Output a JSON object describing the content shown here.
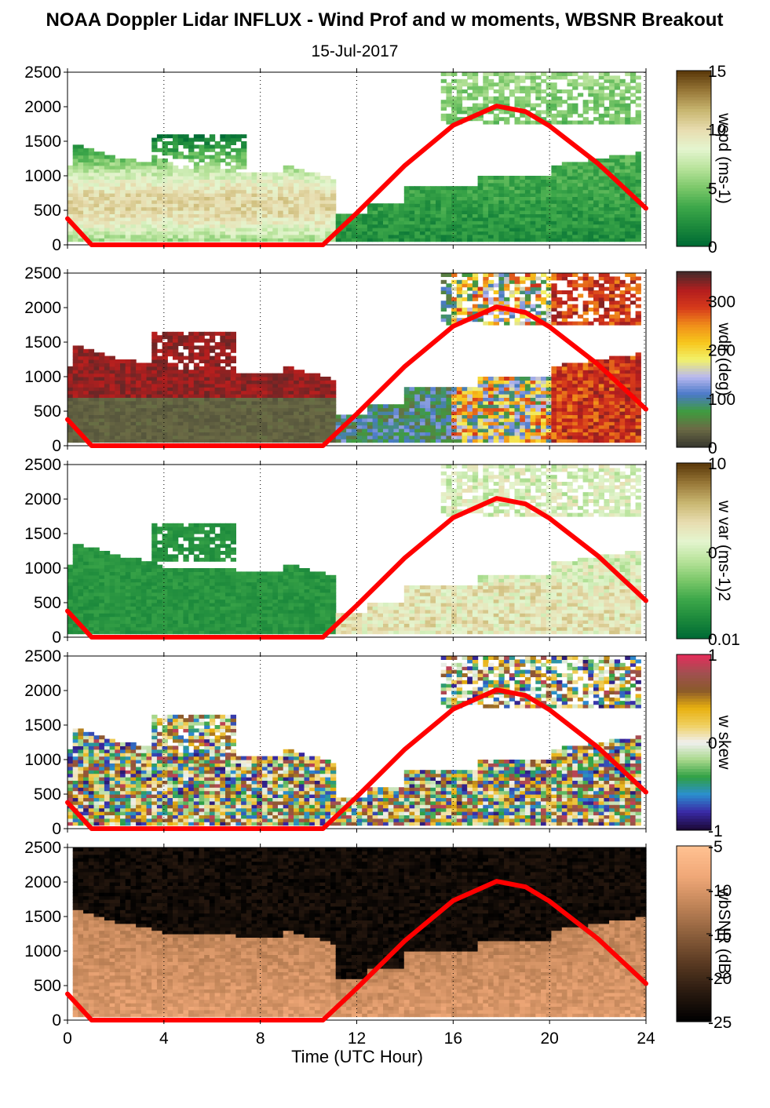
{
  "title": "NOAA Doppler Lidar INFLUX - Wind Prof and w moments, WBSNR Breakout",
  "subtitle": "15-Jul-2017",
  "chart_data": {
    "type": "heatmap",
    "xlabel": "Time (UTC Hour)",
    "xlim": [
      0,
      24
    ],
    "x_ticks": [
      0,
      4,
      8,
      12,
      16,
      20,
      24
    ],
    "x_tick_labels": [
      "0",
      "4",
      "8",
      "12",
      "16",
      "20",
      "24"
    ],
    "ylim": [
      0,
      2500
    ],
    "y_ticks": [
      0,
      500,
      1000,
      1500,
      2000,
      2500
    ],
    "y_tick_labels": [
      "0",
      "500",
      "1000",
      "1500",
      "2000",
      "2500"
    ],
    "grid": "vertical dotted lines at 4, 8, 12, 16, 20 h",
    "overlay_line": {
      "color": "#ff0000",
      "description_points": [
        [
          0,
          380
        ],
        [
          1,
          0
        ],
        [
          10.6,
          0
        ],
        [
          12,
          460
        ],
        [
          14,
          1150
        ],
        [
          16,
          1730
        ],
        [
          17.8,
          2010
        ],
        [
          19,
          1930
        ],
        [
          20,
          1720
        ],
        [
          22,
          1180
        ],
        [
          24,
          530
        ]
      ]
    },
    "panels": [
      {
        "name": "wspd",
        "colorbar_label": "wspd (ms-1)",
        "colorbar_ticks": [
          "15",
          "10",
          "5",
          "0"
        ],
        "colorbar_tick_values": [
          15,
          10,
          5,
          0
        ],
        "colorbar_range": [
          0,
          15
        ],
        "colormap": [
          "#006b35",
          "#1d8a3c",
          "#3ea84a",
          "#7cc86a",
          "#b8e39b",
          "#e4f5cf",
          "#e8ddb0",
          "#c9b771",
          "#9a7a3a",
          "#5e3c0c"
        ]
      },
      {
        "name": "wdir",
        "colorbar_label": "wdir (deg)",
        "colorbar_ticks": [
          "300",
          "200",
          "100",
          "0"
        ],
        "colorbar_tick_values": [
          300,
          200,
          100,
          0
        ],
        "colorbar_range": [
          0,
          360
        ],
        "colormap": [
          "#3a3a30",
          "#6b6a45",
          "#3f9c3e",
          "#4a79c8",
          "#b9b8f0",
          "#f2f26a",
          "#f7c61c",
          "#f08d1a",
          "#d63a1b",
          "#b41e1e",
          "#4a2a2a"
        ]
      },
      {
        "name": "w var",
        "colorbar_label": "w var (ms-1)2",
        "colorbar_ticks": [
          "10",
          "0.",
          "0.01"
        ],
        "colorbar_tick_values": [
          10,
          0.3,
          0.01
        ],
        "colorbar_scale": "log",
        "colorbar_range": [
          0.01,
          10
        ],
        "colormap": [
          "#006b35",
          "#1d8a3c",
          "#3ea84a",
          "#7cc86a",
          "#b8e39b",
          "#e4f5cf",
          "#e8ddb0",
          "#c9b771",
          "#9a7a3a",
          "#5e3c0c"
        ]
      },
      {
        "name": "w skew",
        "colorbar_label": "w skew",
        "colorbar_ticks": [
          "1",
          "0",
          "-1"
        ],
        "colorbar_tick_values": [
          1,
          0,
          -1
        ],
        "colorbar_range": [
          -1,
          1
        ],
        "colormap": [
          "#1c0a3a",
          "#3a2aa6",
          "#2b8fd0",
          "#2fa043",
          "#a8d88b",
          "#f0f0f0",
          "#f0d060",
          "#e8b00f",
          "#8a5a2a",
          "#a05050",
          "#e0305a"
        ]
      },
      {
        "name": "wbSNR",
        "colorbar_label": "wbSNR (dB)",
        "colorbar_ticks": [
          "-5",
          "-10",
          "-15",
          "-20",
          "-25"
        ],
        "colorbar_tick_values": [
          -5,
          -10,
          -15,
          -20,
          -25
        ],
        "colorbar_range": [
          -25,
          -5
        ],
        "colormap": [
          "#000000",
          "#2a1a10",
          "#5a3a22",
          "#8c5f3c",
          "#c08458",
          "#f0a878",
          "#ffc090"
        ]
      }
    ]
  }
}
